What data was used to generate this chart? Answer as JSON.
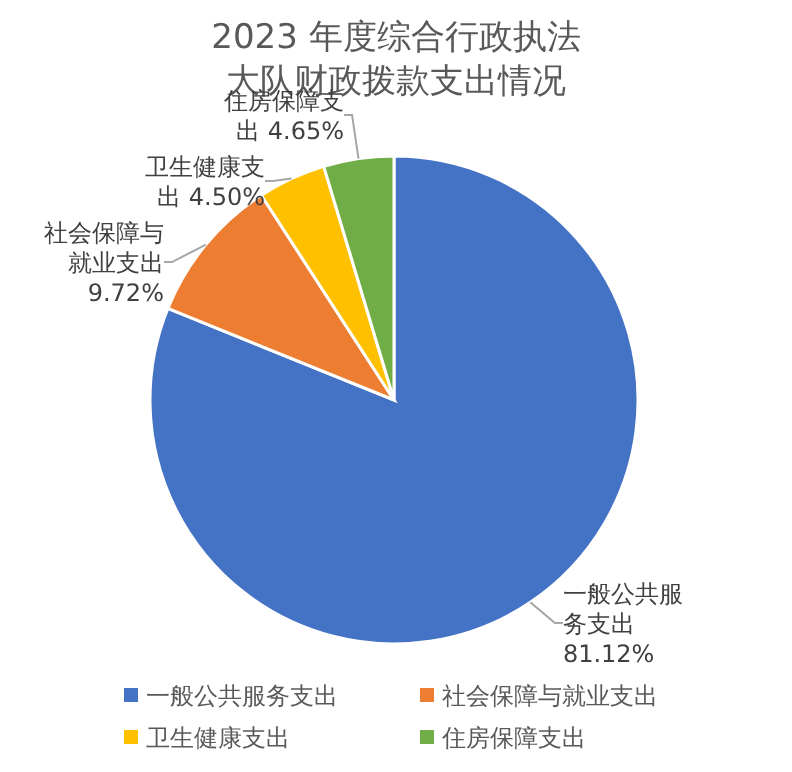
{
  "chart_data": {
    "type": "pie",
    "title": "2023 年度综合行政执法大队财政拨款支出情况",
    "categories": [
      "一般公共服务支出",
      "社会保障与就业支出",
      "卫生健康支出",
      "住房保障支出"
    ],
    "values": [
      81.12,
      9.72,
      4.5,
      4.65
    ],
    "colors": [
      "#4472c4",
      "#ed7d31",
      "#ffc000",
      "#70ad47"
    ],
    "value_labels": [
      "一般公共服务支出81.12%",
      "社会保障与就业支出9.72%",
      "卫生健康支出 4.50%",
      "住房保障支出 4.65%"
    ],
    "legend": "bottom"
  }
}
